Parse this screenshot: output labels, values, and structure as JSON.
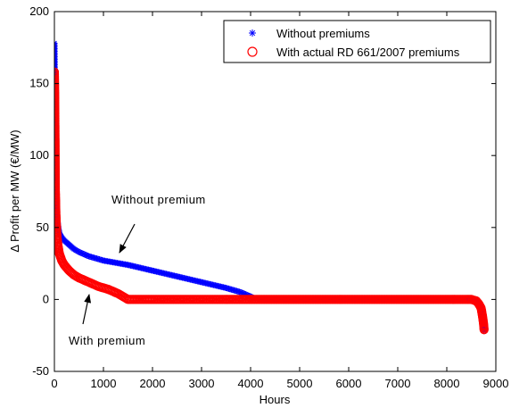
{
  "chart_data": {
    "type": "scatter",
    "title": "",
    "xlabel": "Hours",
    "ylabel": "Δ Profit per MW (€/MW)",
    "xlim": [
      0,
      9000
    ],
    "ylim": [
      -50,
      200
    ],
    "xticks": [
      0,
      1000,
      2000,
      3000,
      4000,
      5000,
      6000,
      7000,
      8000,
      9000
    ],
    "yticks": [
      -50,
      0,
      50,
      100,
      150,
      200
    ],
    "grid": false,
    "legend_position": "top-right",
    "series": [
      {
        "name": "Without premiums",
        "marker": "asterisk",
        "color": "#0000ff",
        "x": [
          0,
          5,
          10,
          15,
          20,
          25,
          30,
          40,
          50,
          60,
          80,
          100,
          150,
          200,
          300,
          400,
          500,
          700,
          1000,
          1500,
          2000,
          2500,
          3000,
          3500,
          3800,
          4000,
          4100,
          4500,
          5000,
          6000,
          7000,
          8000,
          8400,
          8500,
          8600,
          8650,
          8700,
          8730,
          8750,
          8760
        ],
        "y": [
          178,
          163,
          145,
          125,
          100,
          88,
          80,
          68,
          60,
          55,
          50,
          46,
          43,
          41,
          38,
          35,
          33,
          30,
          27,
          24,
          20,
          16,
          12,
          8,
          5,
          2,
          0.5,
          0,
          0,
          0,
          0,
          0,
          0,
          0,
          -1,
          -3,
          -6,
          -12,
          -17,
          -22
        ]
      },
      {
        "name": "With actual RD 661/2007 premiums",
        "marker": "circle",
        "color": "#ff0000",
        "x": [
          0,
          5,
          10,
          15,
          20,
          25,
          30,
          40,
          50,
          70,
          100,
          150,
          200,
          300,
          400,
          500,
          700,
          900,
          1100,
          1300,
          1400,
          1500,
          2000,
          3000,
          4000,
          5000,
          6000,
          7000,
          8000,
          8400,
          8500,
          8600,
          8650,
          8700,
          8730,
          8750,
          8760
        ],
        "y": [
          158,
          145,
          124,
          100,
          75,
          68,
          60,
          52,
          45,
          38,
          32,
          27,
          24,
          20,
          17,
          15,
          12,
          9,
          7,
          4,
          2,
          0,
          0,
          0,
          0,
          0,
          0,
          0,
          0,
          0,
          0,
          -1,
          -3,
          -6,
          -12,
          -17,
          -21
        ]
      }
    ],
    "annotations": [
      {
        "text": "Without premium",
        "points_to": [
          2200,
          25
        ]
      },
      {
        "text": "With premium",
        "points_to": [
          1300,
          3
        ]
      }
    ]
  }
}
